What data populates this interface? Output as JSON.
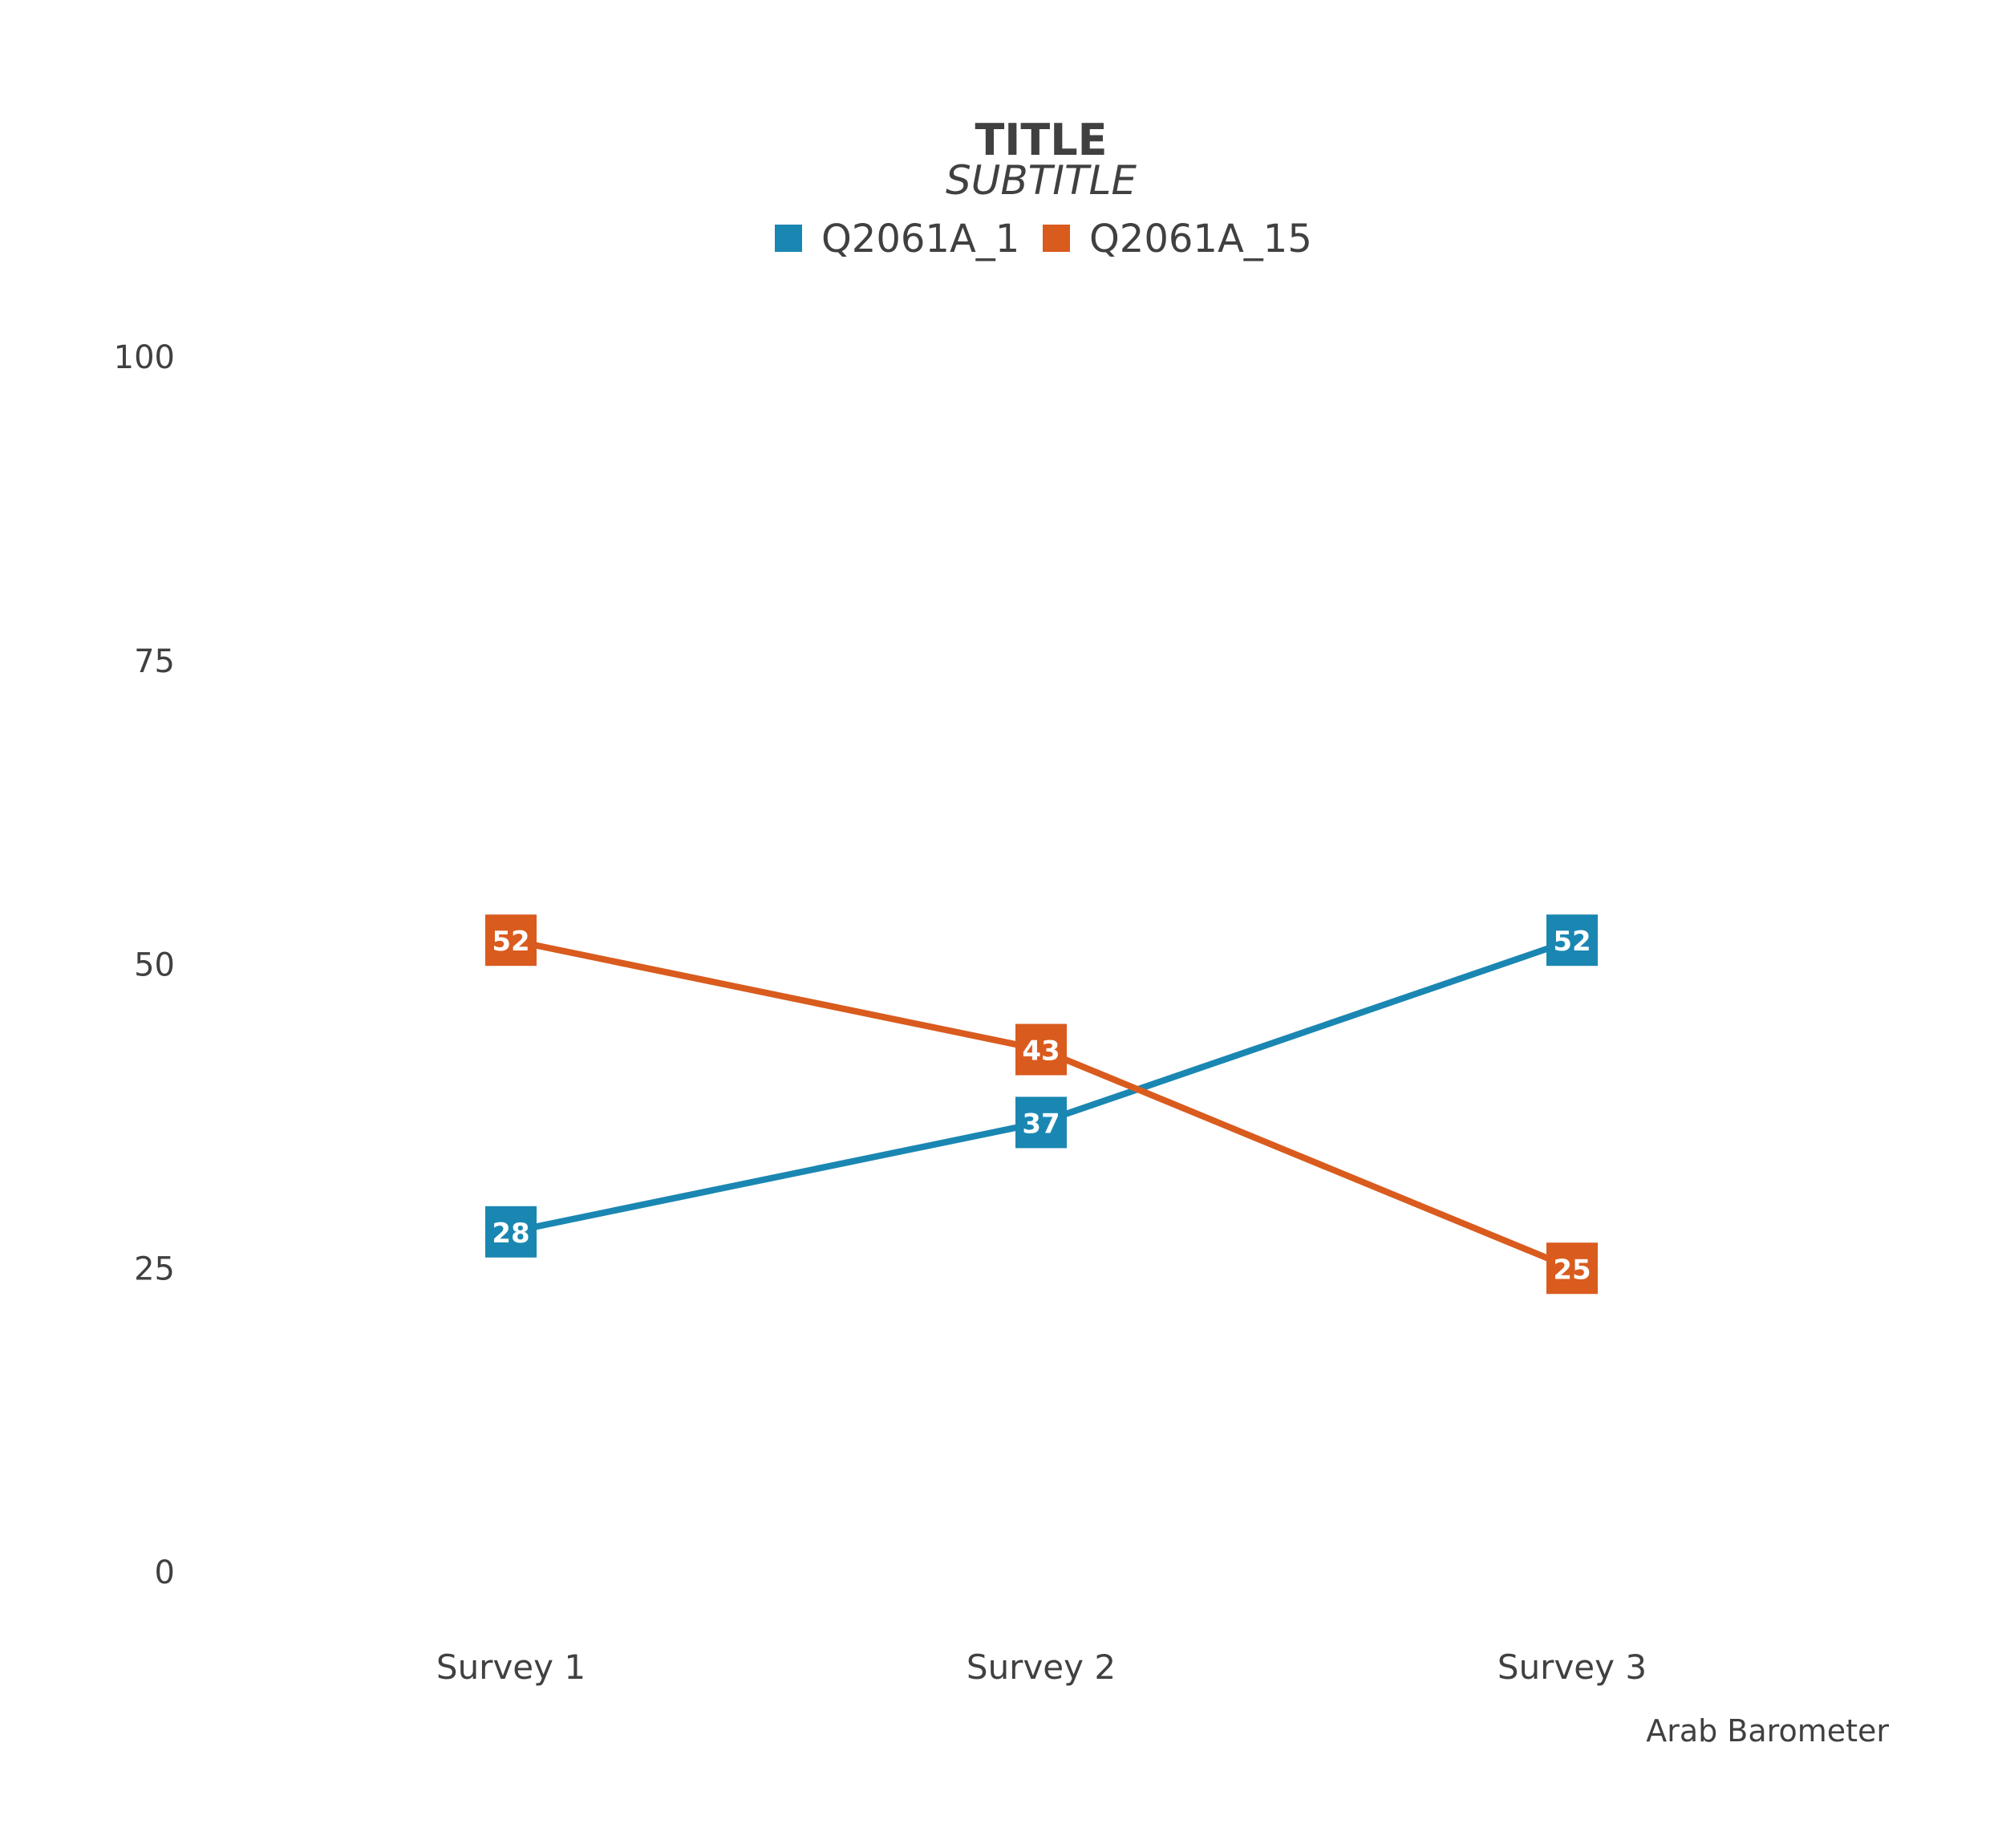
{
  "chart_data": {
    "type": "line",
    "title": "TITLE",
    "subtitle": "SUBTITLE",
    "categories": [
      "Survey 1",
      "Survey 2",
      "Survey 3"
    ],
    "series": [
      {
        "name": "Q2061A_1",
        "color": "#1a87b2",
        "values": [
          28,
          37,
          52
        ]
      },
      {
        "name": "Q2061A_15",
        "color": "#d95b1e",
        "values": [
          52,
          43,
          25
        ]
      }
    ],
    "ylim": [
      0,
      100
    ],
    "yticks": [
      0,
      25,
      50,
      75,
      100
    ],
    "grid": false,
    "legend": "top-center",
    "caption": "Arab Barometer"
  }
}
